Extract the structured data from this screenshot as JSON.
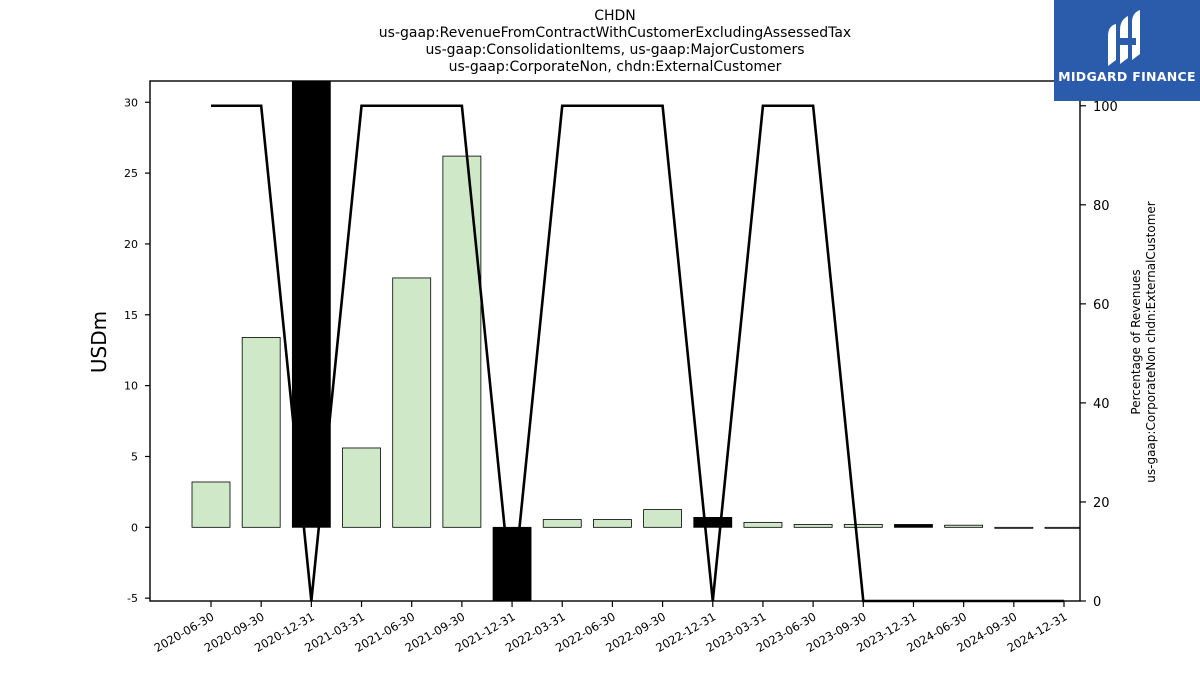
{
  "title": {
    "lines": [
      "CHDN",
      "us-gaap:RevenueFromContractWithCustomerExcludingAssessedTax",
      "us-gaap:ConsolidationItems, us-gaap:MajorCustomers",
      "us-gaap:CorporateNon, chdn:ExternalCustomer"
    ]
  },
  "logo": {
    "text": "MIDGARD FINANCE",
    "icon": "midgard-logo-icon",
    "color": "#2b5bab"
  },
  "axes": {
    "left_label": "USDm",
    "right_label_lines": [
      "Percentage of Revenues",
      "us-gaap:CorporateNon chdn:ExternalCustomer"
    ]
  },
  "chart_data": {
    "type": "bar",
    "categories": [
      "2020-06-30",
      "2020-09-30",
      "2020-12-31",
      "2021-03-31",
      "2021-06-30",
      "2021-09-30",
      "2021-12-31",
      "2022-03-31",
      "2022-06-30",
      "2022-09-30",
      "2022-12-31",
      "2023-03-31",
      "2023-06-30",
      "2023-09-30",
      "2023-12-31",
      "2024-06-30",
      "2024-09-30",
      "2024-12-31"
    ],
    "series": [
      {
        "axis": "left",
        "type": "bar",
        "values": [
          3.2,
          13.4,
          31.5,
          5.6,
          17.6,
          26.2,
          -5.2,
          0.55,
          0.55,
          1.25,
          0.7,
          0.35,
          0.2,
          0.2,
          0.2,
          0.15,
          -0.05,
          -0.05
        ],
        "highlight": [
          false,
          false,
          true,
          false,
          false,
          false,
          true,
          false,
          false,
          false,
          true,
          false,
          false,
          false,
          true,
          false,
          false,
          false
        ]
      },
      {
        "axis": "right",
        "type": "line",
        "values": [
          100,
          100,
          0,
          100,
          100,
          100,
          0,
          100,
          100,
          100,
          0,
          100,
          100,
          0,
          0,
          0,
          0,
          0
        ]
      }
    ],
    "ylim_left": [
      -5.2,
      31.5
    ],
    "yticks_left": [
      -5,
      0,
      5,
      10,
      15,
      20,
      25,
      30
    ],
    "ylim_right": [
      0,
      105
    ],
    "yticks_right": [
      0,
      20,
      40,
      60,
      80,
      100
    ],
    "colors": {
      "bar": "#cfe9c8",
      "bar_highlight": "#000000",
      "bar_edge": "#000000",
      "line": "#000000"
    },
    "grid": false,
    "legend": "none"
  }
}
